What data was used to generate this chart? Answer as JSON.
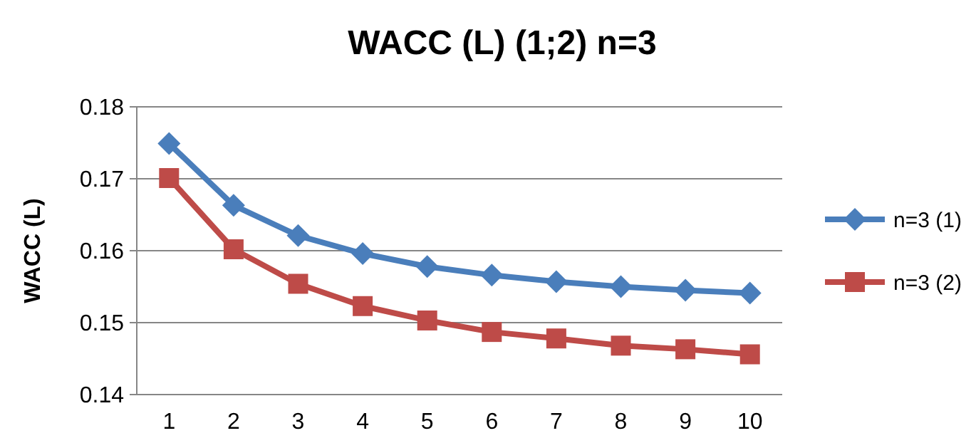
{
  "chart_data": {
    "type": "line",
    "title": "WACC (L) (1;2) n=3",
    "ylabel": "WACC (L)",
    "categories": [
      "1",
      "2",
      "3",
      "4",
      "5",
      "6",
      "7",
      "8",
      "9",
      "10"
    ],
    "series": [
      {
        "name": "n=3 (1)",
        "color": "#4a7ebb",
        "marker": "diamond",
        "values": [
          0.1749,
          0.1663,
          0.1621,
          0.1596,
          0.1578,
          0.1566,
          0.1557,
          0.155,
          0.1545,
          0.1541
        ]
      },
      {
        "name": "n=3 (2)",
        "color": "#be4b48",
        "marker": "square",
        "values": [
          0.1701,
          0.1602,
          0.1554,
          0.1523,
          0.1503,
          0.1487,
          0.1478,
          0.1468,
          0.1463,
          0.1456
        ]
      }
    ],
    "ylim": [
      0.14,
      0.18
    ],
    "yticks": [
      0.14,
      0.15,
      0.16,
      0.17,
      0.18
    ],
    "grid": "y",
    "legend": "right"
  }
}
